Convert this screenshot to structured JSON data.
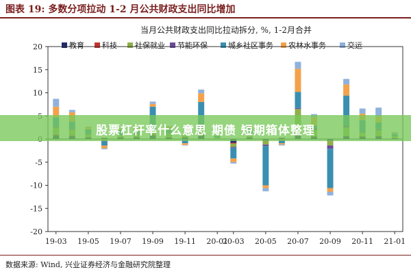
{
  "figure": {
    "label": "图表 19:",
    "title": "多数分项拉动 1-2 月公共财政支出同比增加"
  },
  "watermark": "股票杠杆率什么意思 期债 短期箱体整理",
  "source": "数据来源: Wind, 兴业证券经济与金融研究院整理",
  "chart_data": {
    "type": "bar",
    "stacked": true,
    "title": "当月公共财政支出同比拉动拆分, %, 1-2月合并",
    "xlabel": "",
    "ylabel": "",
    "ylim": [
      -20,
      20
    ],
    "yticks": [
      -20,
      -15,
      -10,
      -5,
      0,
      5,
      10,
      15,
      20
    ],
    "grid": false,
    "legend_position": "top",
    "categories": [
      "19-03",
      "19-04",
      "19-05",
      "19-06",
      "19-07",
      "19-08",
      "19-09",
      "19-10",
      "19-11",
      "19-12",
      "20-01",
      "20-03",
      "20-04",
      "20-05",
      "20-06",
      "20-07",
      "20-08",
      "20-09",
      "20-10",
      "20-11",
      "20-12",
      "21-01"
    ],
    "xtick_labels": [
      "19-03",
      "19-05",
      "19-07",
      "19-09",
      "19-11",
      "20-01",
      "20-03",
      "20-05",
      "20-07",
      "20-09",
      "20-11",
      "21-01"
    ],
    "series": [
      {
        "name": "教育",
        "color": "#1f2a6b",
        "values": [
          0.8,
          0.6,
          0.3,
          0.2,
          0.3,
          0.4,
          0.8,
          0.3,
          0.3,
          0.8,
          0.0,
          -0.8,
          0.3,
          -0.3,
          0.2,
          0.8,
          0.5,
          -0.3,
          0.6,
          0.5,
          0.6,
          0.2
        ]
      },
      {
        "name": "科技",
        "color": "#c0332e",
        "values": [
          0.2,
          0.2,
          0.1,
          0.1,
          0.1,
          0.1,
          0.2,
          0.1,
          0.1,
          0.3,
          0.0,
          -0.2,
          0.1,
          -0.1,
          0.1,
          0.2,
          0.1,
          -0.1,
          0.1,
          0.1,
          0.1,
          0.0
        ]
      },
      {
        "name": "社保就业",
        "color": "#8fb04a",
        "values": [
          1.5,
          1.2,
          0.6,
          -0.3,
          0.5,
          0.6,
          1.0,
          0.8,
          0.5,
          1.2,
          0.3,
          -0.7,
          0.8,
          -0.8,
          -0.2,
          5.5,
          1.4,
          -1.0,
          1.8,
          0.8,
          1.2,
          0.4
        ]
      },
      {
        "name": "节能环保",
        "color": "#6b4c9a",
        "values": [
          0.2,
          0.2,
          0.1,
          -0.2,
          0.1,
          0.1,
          0.2,
          0.1,
          -0.1,
          0.2,
          0.0,
          -0.2,
          0.1,
          -0.3,
          -0.1,
          0.2,
          0.3,
          -0.7,
          0.4,
          0.2,
          0.2,
          0.0
        ]
      },
      {
        "name": "城乡社区事务",
        "color": "#3a8fb0",
        "values": [
          2.0,
          1.6,
          1.0,
          -0.9,
          0.9,
          0.8,
          4.8,
          0.8,
          -0.8,
          5.5,
          0.4,
          -2.3,
          1.0,
          -8.5,
          -0.6,
          3.5,
          0.6,
          -8.5,
          6.5,
          2.5,
          1.5,
          0.5
        ]
      },
      {
        "name": "农林水事务",
        "color": "#f3a24b",
        "values": [
          2.3,
          2.0,
          0.5,
          -0.6,
          0.3,
          0.5,
          0.6,
          0.6,
          -0.4,
          1.9,
          0.1,
          -0.8,
          0.5,
          -0.6,
          -0.3,
          5.0,
          1.9,
          -0.8,
          2.4,
          1.4,
          1.4,
          0.2
        ]
      },
      {
        "name": "交运",
        "color": "#8fb1dd",
        "values": [
          1.7,
          0.5,
          0.1,
          -0.2,
          0.1,
          0.1,
          0.5,
          0.1,
          -0.1,
          0.8,
          0.0,
          -0.3,
          0.4,
          -0.7,
          -0.2,
          1.5,
          0.6,
          -0.8,
          1.2,
          1.1,
          1.8,
          0.2
        ]
      }
    ]
  }
}
